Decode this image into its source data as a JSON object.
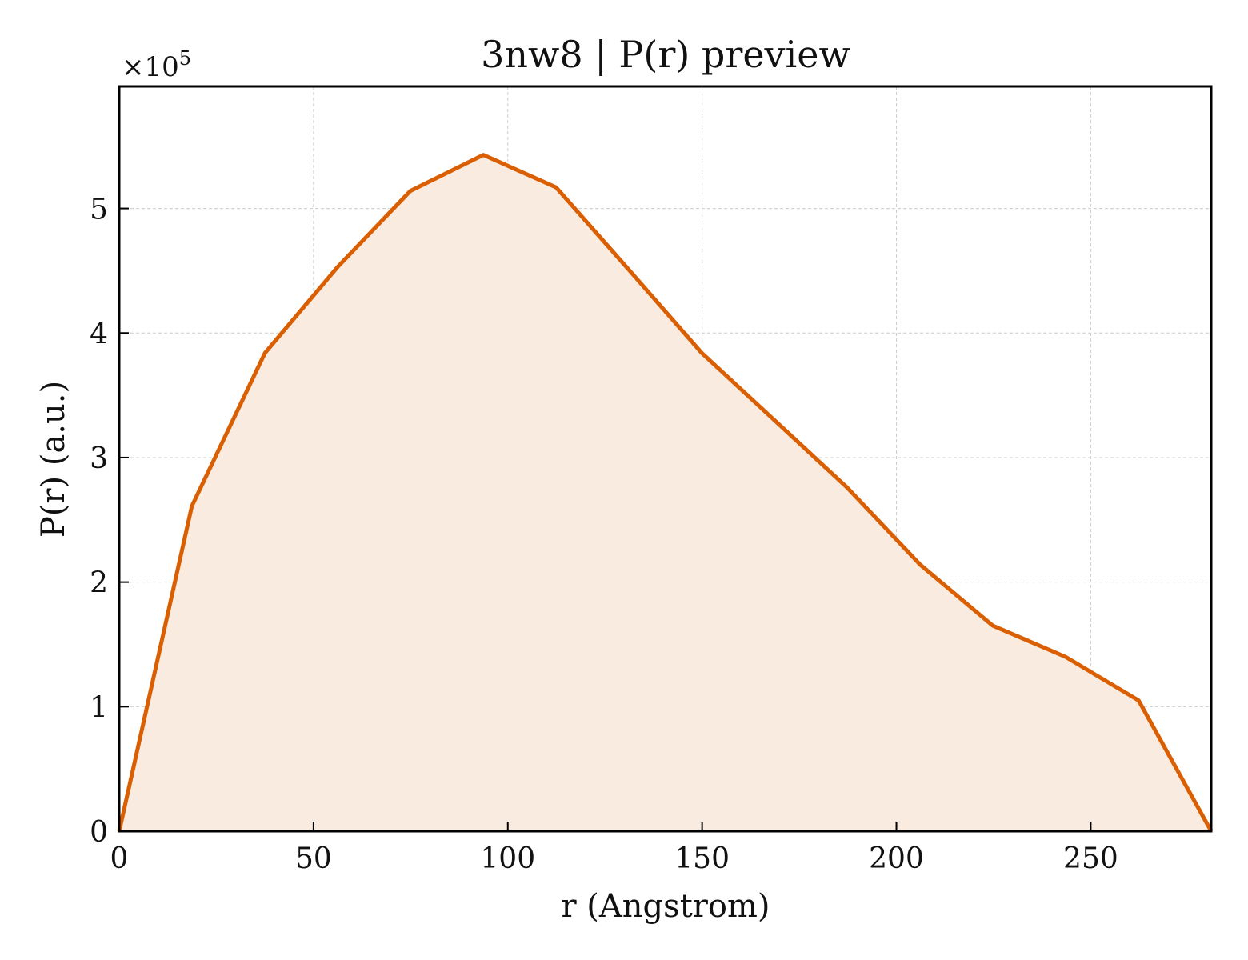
{
  "chart_data": {
    "type": "area",
    "title": "3nw8 | P(r) preview",
    "xlabel": "r (Angstrom)",
    "ylabel": "P(r) (a.u.)",
    "y_multiplier": {
      "base": "×10",
      "exponent": "5"
    },
    "xlim": [
      0,
      281
    ],
    "ylim": [
      0,
      5.98
    ],
    "x_ticks": [
      0,
      50,
      100,
      150,
      200,
      250
    ],
    "y_ticks": [
      0,
      1,
      2,
      3,
      4,
      5
    ],
    "grid": true,
    "colors": {
      "line": "#d95f02",
      "fill": "#f9ebe0"
    },
    "series": [
      {
        "x": [
          0,
          18.7,
          37.5,
          56.2,
          74.9,
          93.7,
          112.4,
          131.1,
          149.9,
          168.6,
          187.3,
          206.1,
          224.8,
          243.5,
          262.3,
          281
        ],
        "values": [
          0,
          2.61,
          3.84,
          4.53,
          5.14,
          5.43,
          5.17,
          4.51,
          3.84,
          3.3,
          2.76,
          2.14,
          1.65,
          1.4,
          1.05,
          0
        ]
      }
    ]
  }
}
